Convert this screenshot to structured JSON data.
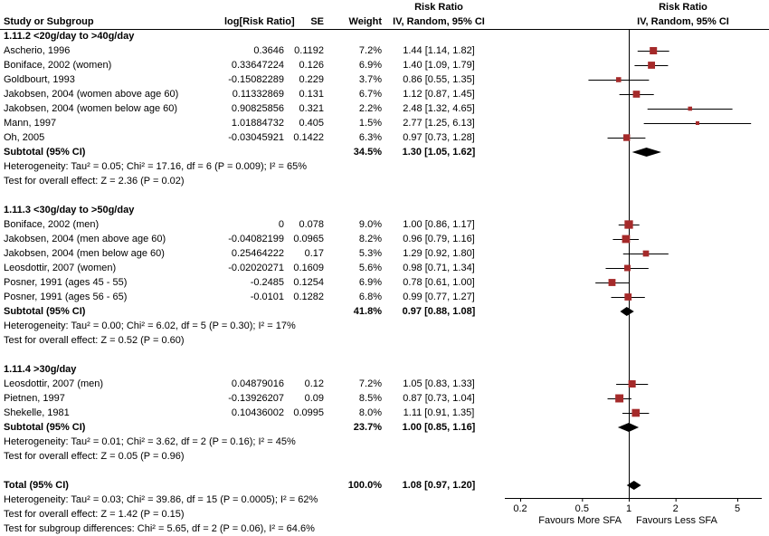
{
  "header": {
    "study": "Study or Subgroup",
    "log_rr": "log[Risk Ratio]",
    "se": "SE",
    "weight": "Weight",
    "effect_title": "Risk Ratio",
    "effect_method": "IV, Random, 95% CI"
  },
  "chart_data": {
    "type": "forest",
    "effect_measure": "Risk Ratio",
    "model": "IV, Random, 95% CI",
    "scale": "log",
    "marker_color": "#a52a2a",
    "axis": {
      "ticks": [
        0.2,
        0.5,
        1,
        2,
        5
      ],
      "favours_left": "Favours More SFA",
      "favours_right": "Favours Less SFA"
    },
    "groups": [
      {
        "label": "1.11.2 <20g/day to >40g/day",
        "studies": [
          {
            "study": "Ascherio, 1996",
            "log_rr": "0.3646",
            "se": "0.1192",
            "weight": "7.2%",
            "ci": "1.44 [1.14, 1.82]",
            "rr": 1.44,
            "lo": 1.14,
            "hi": 1.82
          },
          {
            "study": "Boniface, 2002 (women)",
            "log_rr": "0.33647224",
            "se": "0.126",
            "weight": "6.9%",
            "ci": "1.40 [1.09, 1.79]",
            "rr": 1.4,
            "lo": 1.09,
            "hi": 1.79
          },
          {
            "study": "Goldbourt, 1993",
            "log_rr": "-0.15082289",
            "se": "0.229",
            "weight": "3.7%",
            "ci": "0.86 [0.55, 1.35]",
            "rr": 0.86,
            "lo": 0.55,
            "hi": 1.35
          },
          {
            "study": "Jakobsen, 2004 (women above age 60)",
            "log_rr": "0.11332869",
            "se": "0.131",
            "weight": "6.7%",
            "ci": "1.12 [0.87, 1.45]",
            "rr": 1.12,
            "lo": 0.87,
            "hi": 1.45
          },
          {
            "study": "Jakobsen, 2004 (women below age 60)",
            "log_rr": "0.90825856",
            "se": "0.321",
            "weight": "2.2%",
            "ci": "2.48 [1.32, 4.65]",
            "rr": 2.48,
            "lo": 1.32,
            "hi": 4.65
          },
          {
            "study": "Mann, 1997",
            "log_rr": "1.01884732",
            "se": "0.405",
            "weight": "1.5%",
            "ci": "2.77 [1.25, 6.13]",
            "rr": 2.77,
            "lo": 1.25,
            "hi": 6.13
          },
          {
            "study": "Oh, 2005",
            "log_rr": "-0.03045921",
            "se": "0.1422",
            "weight": "6.3%",
            "ci": "0.97 [0.73, 1.28]",
            "rr": 0.97,
            "lo": 0.73,
            "hi": 1.28
          }
        ],
        "subtotal": {
          "study": "Subtotal (95% CI)",
          "log_rr": "",
          "se": "",
          "weight": "34.5%",
          "ci": "1.30 [1.05, 1.62]",
          "rr": 1.3,
          "lo": 1.05,
          "hi": 1.62
        },
        "heterogeneity": "Heterogeneity: Tau² = 0.05; Chi² = 17.16, df = 6 (P = 0.009); I² = 65%",
        "overall_effect": "Test for overall effect: Z = 2.36 (P = 0.02)"
      },
      {
        "label": "1.11.3 <30g/day to >50g/day",
        "studies": [
          {
            "study": "Boniface, 2002 (men)",
            "log_rr": "0",
            "se": "0.078",
            "weight": "9.0%",
            "ci": "1.00 [0.86, 1.17]",
            "rr": 1.0,
            "lo": 0.86,
            "hi": 1.17
          },
          {
            "study": "Jakobsen, 2004 (men above age 60)",
            "log_rr": "-0.04082199",
            "se": "0.0965",
            "weight": "8.2%",
            "ci": "0.96 [0.79, 1.16]",
            "rr": 0.96,
            "lo": 0.79,
            "hi": 1.16
          },
          {
            "study": "Jakobsen, 2004 (men below age 60)",
            "log_rr": "0.25464222",
            "se": "0.17",
            "weight": "5.3%",
            "ci": "1.29 [0.92, 1.80]",
            "rr": 1.29,
            "lo": 0.92,
            "hi": 1.8
          },
          {
            "study": "Leosdottir, 2007 (women)",
            "log_rr": "-0.02020271",
            "se": "0.1609",
            "weight": "5.6%",
            "ci": "0.98 [0.71, 1.34]",
            "rr": 0.98,
            "lo": 0.71,
            "hi": 1.34
          },
          {
            "study": "Posner, 1991 (ages 45 - 55)",
            "log_rr": "-0.2485",
            "se": "0.1254",
            "weight": "6.9%",
            "ci": "0.78 [0.61, 1.00]",
            "rr": 0.78,
            "lo": 0.61,
            "hi": 1.0
          },
          {
            "study": "Posner, 1991 (ages 56 - 65)",
            "log_rr": "-0.0101",
            "se": "0.1282",
            "weight": "6.8%",
            "ci": "0.99 [0.77, 1.27]",
            "rr": 0.99,
            "lo": 0.77,
            "hi": 1.27
          }
        ],
        "subtotal": {
          "study": "Subtotal (95% CI)",
          "log_rr": "",
          "se": "",
          "weight": "41.8%",
          "ci": "0.97 [0.88, 1.08]",
          "rr": 0.97,
          "lo": 0.88,
          "hi": 1.08
        },
        "heterogeneity": "Heterogeneity: Tau² = 0.00; Chi² = 6.02, df = 5 (P = 0.30); I² = 17%",
        "overall_effect": "Test for overall effect: Z = 0.52 (P = 0.60)"
      },
      {
        "label": "1.11.4 >30g/day",
        "studies": [
          {
            "study": "Leosdottir, 2007 (men)",
            "log_rr": "0.04879016",
            "se": "0.12",
            "weight": "7.2%",
            "ci": "1.05 [0.83, 1.33]",
            "rr": 1.05,
            "lo": 0.83,
            "hi": 1.33
          },
          {
            "study": "Pietnen, 1997",
            "log_rr": "-0.13926207",
            "se": "0.09",
            "weight": "8.5%",
            "ci": "0.87 [0.73, 1.04]",
            "rr": 0.87,
            "lo": 0.73,
            "hi": 1.04
          },
          {
            "study": "Shekelle, 1981",
            "log_rr": "0.10436002",
            "se": "0.0995",
            "weight": "8.0%",
            "ci": "1.11 [0.91, 1.35]",
            "rr": 1.11,
            "lo": 0.91,
            "hi": 1.35
          }
        ],
        "subtotal": {
          "study": "Subtotal (95% CI)",
          "log_rr": "",
          "se": "",
          "weight": "23.7%",
          "ci": "1.00 [0.85, 1.16]",
          "rr": 1.0,
          "lo": 0.85,
          "hi": 1.16
        },
        "heterogeneity": "Heterogeneity: Tau² = 0.01; Chi² = 3.62, df = 2 (P = 0.16); I² = 45%",
        "overall_effect": "Test for overall effect: Z = 0.05 (P = 0.96)"
      }
    ],
    "total": {
      "study": "Total (95% CI)",
      "log_rr": "",
      "se": "",
      "weight": "100.0%",
      "ci": "1.08 [0.97, 1.20]",
      "rr": 1.08,
      "lo": 0.97,
      "hi": 1.2
    },
    "total_heterogeneity": "Heterogeneity: Tau² = 0.03; Chi² = 39.86, df = 15 (P = 0.0005); I² = 62%",
    "total_overall_effect": "Test for overall effect: Z = 1.42 (P = 0.15)",
    "subgroup_differences": "Test for subgroup differences: Chi² = 5.65, df = 2 (P = 0.06), I² = 64.6%"
  }
}
